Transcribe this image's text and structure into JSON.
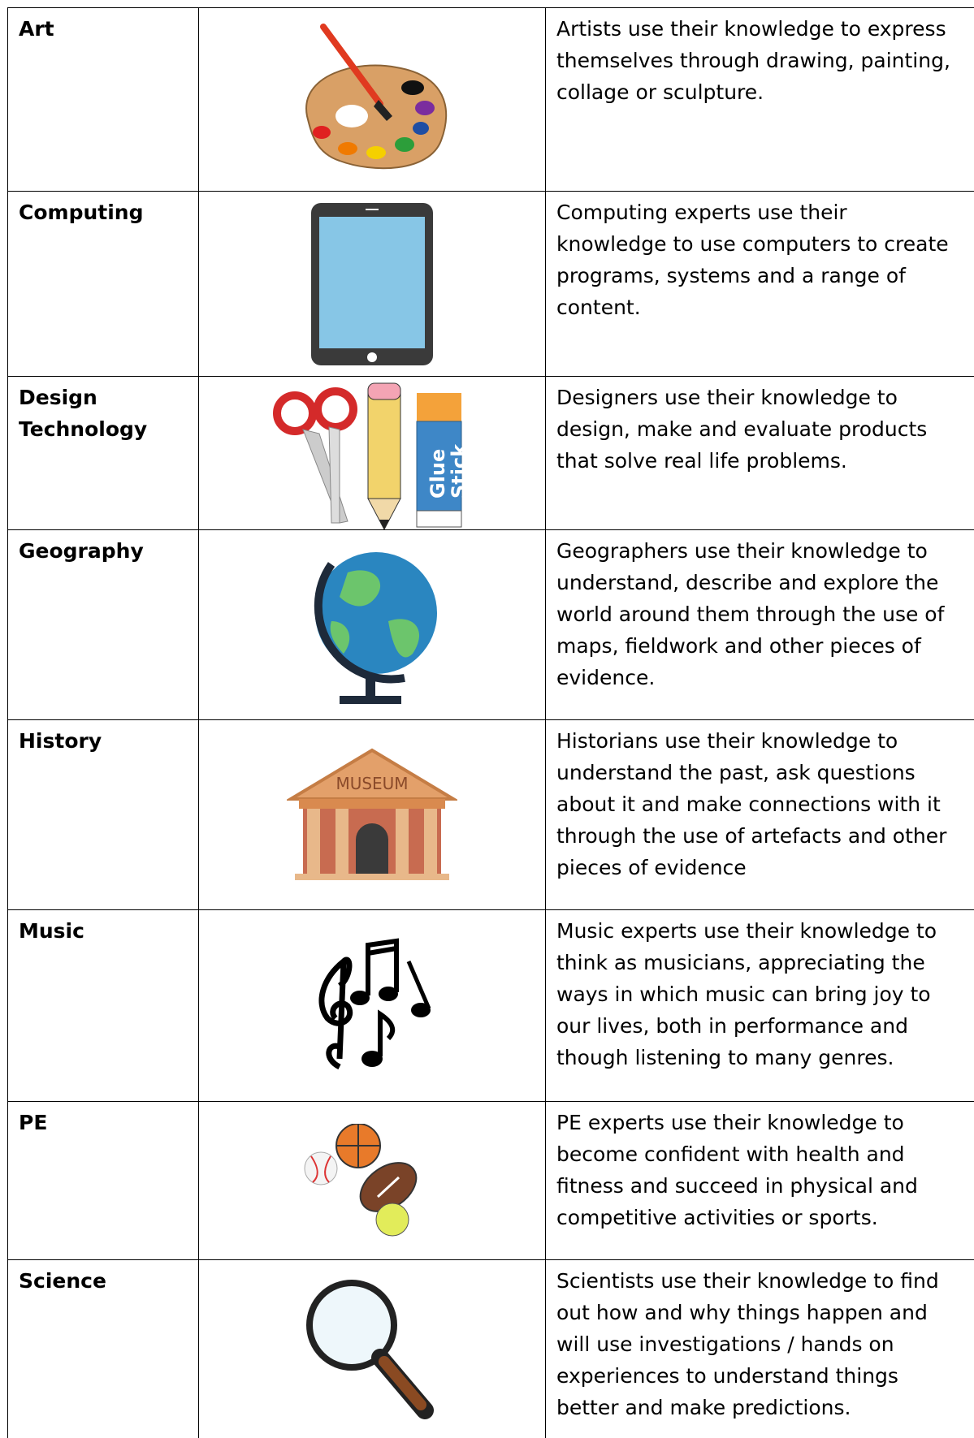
{
  "table": {
    "rows": [
      {
        "subject": "Art",
        "description": [
          "Artists use their knowledge to express",
          "themselves through drawing, painting,",
          "collage or sculpture."
        ]
      },
      {
        "subject": "Computing",
        "description": [
          "Computing experts use their",
          "knowledge to use computers to create",
          "programs, systems and a range of",
          "content."
        ]
      },
      {
        "subject": "Design Technology",
        "icon_text": [
          "Glue",
          "Stick"
        ],
        "description": [
          "Designers use their knowledge to",
          "design, make and evaluate products",
          "that solve real life problems."
        ]
      },
      {
        "subject": "Geography",
        "description": [
          "Geographers use their knowledge to",
          "understand, describe and explore the",
          "world around them through the use of",
          "maps, fieldwork and other pieces of",
          "evidence."
        ]
      },
      {
        "subject": "History",
        "icon_text": "MUSEUM",
        "description": [
          "Historians use their knowledge to",
          "understand the past, ask questions",
          "about it and make connections with it",
          "through the use of artefacts and other",
          "pieces of evidence"
        ]
      },
      {
        "subject": "Music",
        "description": [
          "Music experts use their knowledge to",
          "think as musicians, appreciating the",
          "ways in which music can bring joy to",
          "our lives, both in performance and",
          "though listening to many genres."
        ]
      },
      {
        "subject": "PE",
        "description": [
          "PE experts use their knowledge to",
          "become confident with health and",
          "fitness and succeed in physical and",
          "competitive activities or sports."
        ]
      },
      {
        "subject": "Science",
        "description": [
          "Scientists use their knowledge to find",
          "out how and why things happen and",
          "will use investigations / hands on",
          "experiences to understand things",
          "better and make predictions."
        ]
      }
    ]
  }
}
